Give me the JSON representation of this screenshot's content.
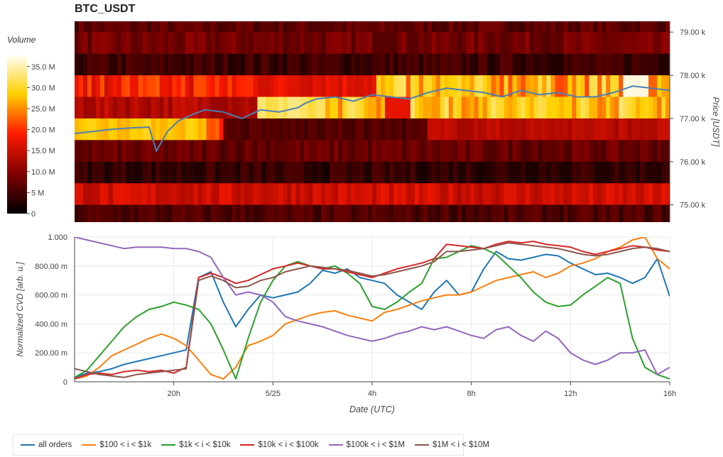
{
  "title": "BTC_USDT",
  "colorbar": {
    "title": "Volume",
    "ticks": [
      "35.0 M",
      "30.0 M",
      "25.0 M",
      "20.0 M",
      "15.0 M",
      "10.0 M",
      "5 M",
      "0"
    ]
  },
  "legend": [
    {
      "label": "all orders",
      "color": "#1f77b4"
    },
    {
      "label": "$100 < i < $1k",
      "color": "#ff7f0e"
    },
    {
      "label": "$1k < i < $10k",
      "color": "#2ca02c"
    },
    {
      "label": "$10k < i < $100k",
      "color": "#d62728"
    },
    {
      "label": "$100k < i < $1M",
      "color": "#9467bd"
    },
    {
      "label": "$1M < i < $10M",
      "color": "#8c564b"
    }
  ],
  "chart_data": [
    {
      "type": "heatmap",
      "title": "BTC_USDT",
      "ylabel": "Price [USDT]",
      "yticks": [
        "79.00 k",
        "78.00 k",
        "77.00 k",
        "76.00 k",
        "75.00 k"
      ],
      "ylim": [
        74600,
        79250
      ],
      "colorscale_max": 38000000,
      "price_bands": [
        {
          "from": 79000,
          "to": 79250,
          "level": 0.18
        },
        {
          "from": 78500,
          "to": 79000,
          "level": 0.22
        },
        {
          "from": 78000,
          "to": 78500,
          "level": 0.12
        },
        {
          "from": 77500,
          "to": 78000,
          "level": 0.45,
          "bright_late": true
        },
        {
          "from": 77000,
          "to": 77500,
          "level": 0.35,
          "bright_mid": true
        },
        {
          "from": 76500,
          "to": 77000,
          "level": 0.55,
          "bright_early": true
        },
        {
          "from": 76000,
          "to": 76500,
          "level": 0.2
        },
        {
          "from": 75500,
          "to": 76000,
          "level": 0.1
        },
        {
          "from": 75000,
          "to": 75500,
          "level": 0.4
        },
        {
          "from": 74600,
          "to": 75000,
          "level": 0.15
        }
      ],
      "price_series": {
        "name": "Price",
        "color": "#4a7fb5",
        "t": [
          0,
          0.5,
          1,
          1.5,
          2,
          2.2,
          2.5,
          2.8,
          3.2,
          3.5,
          4,
          4.5,
          5,
          5.5,
          6,
          6.2,
          6.5,
          7,
          7.5,
          8,
          8.5,
          9,
          9.5,
          10,
          10.5,
          11,
          11.5,
          12,
          12.5,
          13,
          13.5,
          14,
          14.5,
          15,
          15.5,
          16
        ],
        "values": [
          76650,
          76700,
          76750,
          76780,
          76800,
          76250,
          76700,
          76950,
          77100,
          77200,
          77150,
          77000,
          77200,
          77150,
          77250,
          77350,
          77450,
          77500,
          77400,
          77550,
          77500,
          77450,
          77600,
          77700,
          77650,
          77600,
          77500,
          77650,
          77550,
          77600,
          77500,
          77500,
          77600,
          77750,
          77700,
          77650
        ]
      }
    },
    {
      "type": "line",
      "xlabel": "Date (UTC)",
      "ylabel": "Normalized CVD [arb. u.]",
      "ylim": [
        0,
        1
      ],
      "yticks": [
        "0",
        "200.00 m",
        "400.00 m",
        "600.00 m",
        "800.00 m",
        "1.000"
      ],
      "xticks": [
        "20h",
        "5/25",
        "4h",
        "8h",
        "12h",
        "16h"
      ],
      "x_tick_hours": [
        4,
        8,
        12,
        16,
        20,
        24
      ],
      "x": [
        0,
        0.5,
        1,
        1.5,
        2,
        2.5,
        3,
        3.5,
        4,
        4.5,
        5,
        5.5,
        6,
        6.5,
        7,
        7.5,
        8,
        8.5,
        9,
        9.5,
        10,
        10.5,
        11,
        11.5,
        12,
        12.5,
        13,
        13.5,
        14,
        14.5,
        15,
        15.5,
        16,
        16.5,
        17,
        17.5,
        18,
        18.5,
        19,
        19.5,
        20,
        20.5,
        21,
        21.5,
        22,
        22.5,
        23,
        23.5,
        24
      ],
      "series": [
        {
          "name": "all orders",
          "values": [
            0.03,
            0.06,
            0.07,
            0.09,
            0.12,
            0.14,
            0.16,
            0.18,
            0.2,
            0.22,
            0.72,
            0.76,
            0.55,
            0.38,
            0.5,
            0.6,
            0.58,
            0.6,
            0.62,
            0.68,
            0.77,
            0.75,
            0.78,
            0.72,
            0.7,
            0.68,
            0.6,
            0.55,
            0.5,
            0.62,
            0.7,
            0.6,
            0.62,
            0.78,
            0.9,
            0.85,
            0.84,
            0.86,
            0.88,
            0.87,
            0.82,
            0.78,
            0.74,
            0.75,
            0.72,
            0.68,
            0.72,
            0.85,
            0.59
          ]
        },
        {
          "name": "$100 < i < $1k",
          "values": [
            0.02,
            0.04,
            0.1,
            0.18,
            0.22,
            0.26,
            0.3,
            0.33,
            0.3,
            0.25,
            0.15,
            0.05,
            0.02,
            0.1,
            0.25,
            0.28,
            0.32,
            0.4,
            0.43,
            0.46,
            0.48,
            0.49,
            0.46,
            0.44,
            0.42,
            0.48,
            0.5,
            0.53,
            0.56,
            0.58,
            0.6,
            0.6,
            0.62,
            0.66,
            0.7,
            0.72,
            0.74,
            0.76,
            0.72,
            0.75,
            0.8,
            0.82,
            0.85,
            0.9,
            0.93,
            0.98,
            1.0,
            0.85,
            0.78
          ]
        },
        {
          "name": "$1k < i < $10k",
          "values": [
            0.03,
            0.08,
            0.18,
            0.28,
            0.38,
            0.45,
            0.5,
            0.52,
            0.55,
            0.53,
            0.5,
            0.4,
            0.22,
            0.02,
            0.3,
            0.55,
            0.7,
            0.8,
            0.83,
            0.8,
            0.78,
            0.8,
            0.75,
            0.68,
            0.52,
            0.5,
            0.55,
            0.62,
            0.68,
            0.85,
            0.86,
            0.9,
            0.94,
            0.92,
            0.88,
            0.8,
            0.72,
            0.62,
            0.55,
            0.52,
            0.53,
            0.6,
            0.66,
            0.72,
            0.68,
            0.3,
            0.1,
            0.05,
            0.02
          ]
        },
        {
          "name": "$10k < i < $100k",
          "values": [
            0.02,
            0.05,
            0.06,
            0.05,
            0.07,
            0.08,
            0.07,
            0.08,
            0.06,
            0.1,
            0.72,
            0.75,
            0.72,
            0.68,
            0.7,
            0.74,
            0.78,
            0.8,
            0.82,
            0.8,
            0.78,
            0.78,
            0.76,
            0.74,
            0.72,
            0.75,
            0.78,
            0.8,
            0.82,
            0.85,
            0.95,
            0.94,
            0.93,
            0.92,
            0.95,
            0.97,
            0.96,
            0.97,
            0.95,
            0.94,
            0.93,
            0.9,
            0.88,
            0.9,
            0.92,
            0.94,
            0.93,
            0.91,
            0.9
          ]
        },
        {
          "name": "$100k < i < $1M",
          "values": [
            1.0,
            0.98,
            0.96,
            0.94,
            0.92,
            0.93,
            0.93,
            0.93,
            0.92,
            0.92,
            0.9,
            0.86,
            0.72,
            0.6,
            0.62,
            0.6,
            0.55,
            0.45,
            0.42,
            0.4,
            0.38,
            0.35,
            0.32,
            0.3,
            0.28,
            0.3,
            0.33,
            0.35,
            0.38,
            0.36,
            0.38,
            0.35,
            0.32,
            0.3,
            0.36,
            0.38,
            0.32,
            0.28,
            0.35,
            0.3,
            0.2,
            0.15,
            0.12,
            0.15,
            0.2,
            0.2,
            0.22,
            0.05,
            0.1
          ]
        },
        {
          "name": "$1M < i < $10M",
          "values": [
            0.09,
            0.07,
            0.05,
            0.04,
            0.03,
            0.05,
            0.06,
            0.07,
            0.08,
            0.09,
            0.7,
            0.73,
            0.7,
            0.65,
            0.66,
            0.7,
            0.72,
            0.76,
            0.78,
            0.8,
            0.79,
            0.78,
            0.77,
            0.75,
            0.73,
            0.74,
            0.76,
            0.78,
            0.8,
            0.83,
            0.9,
            0.9,
            0.91,
            0.92,
            0.94,
            0.96,
            0.95,
            0.94,
            0.93,
            0.92,
            0.9,
            0.88,
            0.87,
            0.88,
            0.9,
            0.92,
            0.93,
            0.92,
            0.9
          ]
        }
      ],
      "grid": true
    }
  ]
}
